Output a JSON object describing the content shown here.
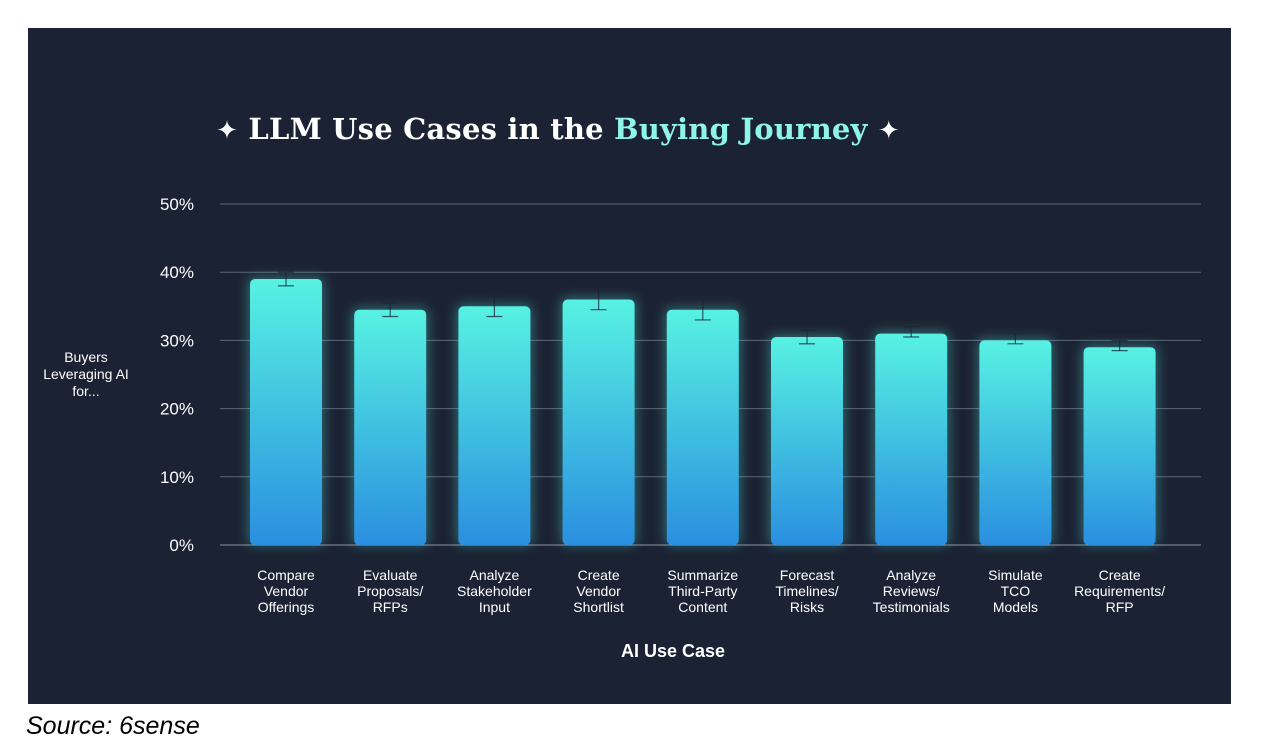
{
  "chart_data": {
    "type": "bar",
    "title_parts": [
      "LLM Use Cases in the ",
      "Buying Journey"
    ],
    "title_star": "✦",
    "ylabel_lines": [
      "Buyers",
      "Leveraging AI",
      "for..."
    ],
    "xlabel": "AI Use Case",
    "ylim": [
      0,
      50
    ],
    "yticks": [
      "0%",
      "10%",
      "20%",
      "30%",
      "40%",
      "50%"
    ],
    "grid": true,
    "categories": [
      [
        "Compare",
        "Vendor",
        "Offerings"
      ],
      [
        "Evaluate",
        "Proposals/",
        "RFPs"
      ],
      [
        "Analyze",
        "Stakeholder",
        "Input"
      ],
      [
        "Create",
        "Vendor",
        "Shortlist"
      ],
      [
        "Summarize",
        "Third-Party",
        "Content"
      ],
      [
        "Forecast",
        "Timelines/",
        "Risks"
      ],
      [
        "Analyze",
        "Reviews/",
        "Testimonials"
      ],
      [
        "Simulate",
        "TCO",
        "Models"
      ],
      [
        "Create",
        "Requirements/",
        "RFP"
      ]
    ],
    "values": [
      39,
      34.5,
      35,
      36,
      34.5,
      30.5,
      31,
      30,
      29
    ],
    "error_low": [
      38,
      33.5,
      33.5,
      34.5,
      33,
      29.5,
      30.5,
      29.5,
      28.5
    ],
    "error_high": [
      40,
      35.5,
      36.5,
      38,
      36,
      31.5,
      32,
      31,
      30
    ],
    "colors": {
      "bar_top": "#57f2e2",
      "bar_bottom": "#2a8fe0",
      "grid": "#5c6477",
      "axis": "#8b92a3",
      "text": "#ffffff",
      "highlight": "#8ff5ea"
    }
  },
  "footer": {
    "source": "Source: 6sense"
  }
}
